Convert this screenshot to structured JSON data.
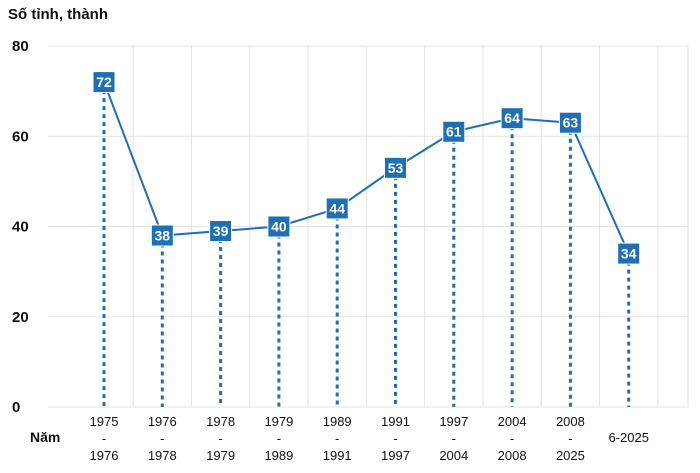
{
  "chart_data": {
    "type": "line",
    "title": "",
    "ylabel": "Số tỉnh, thành",
    "xlabel": "Năm",
    "ylim": [
      0,
      80
    ],
    "yticks": [
      0,
      20,
      40,
      60,
      80
    ],
    "grid": true,
    "categories": [
      [
        "1975",
        "-",
        "1976"
      ],
      [
        "1976",
        "-",
        "1978"
      ],
      [
        "1978",
        "-",
        "1979"
      ],
      [
        "1979",
        "-",
        "1989"
      ],
      [
        "1989",
        "-",
        "1991"
      ],
      [
        "1991",
        "-",
        "1997"
      ],
      [
        "1997",
        "-",
        "2004"
      ],
      [
        "2004",
        "-",
        "2008"
      ],
      [
        "2008",
        "-",
        "2025"
      ],
      [
        "6-2025"
      ]
    ],
    "values": [
      72,
      38,
      39,
      40,
      44,
      53,
      61,
      64,
      63,
      34
    ],
    "colors": {
      "line": "#1f6fb2",
      "label_bg": "#1f6fb2",
      "grid": "#e3e3e3"
    }
  }
}
